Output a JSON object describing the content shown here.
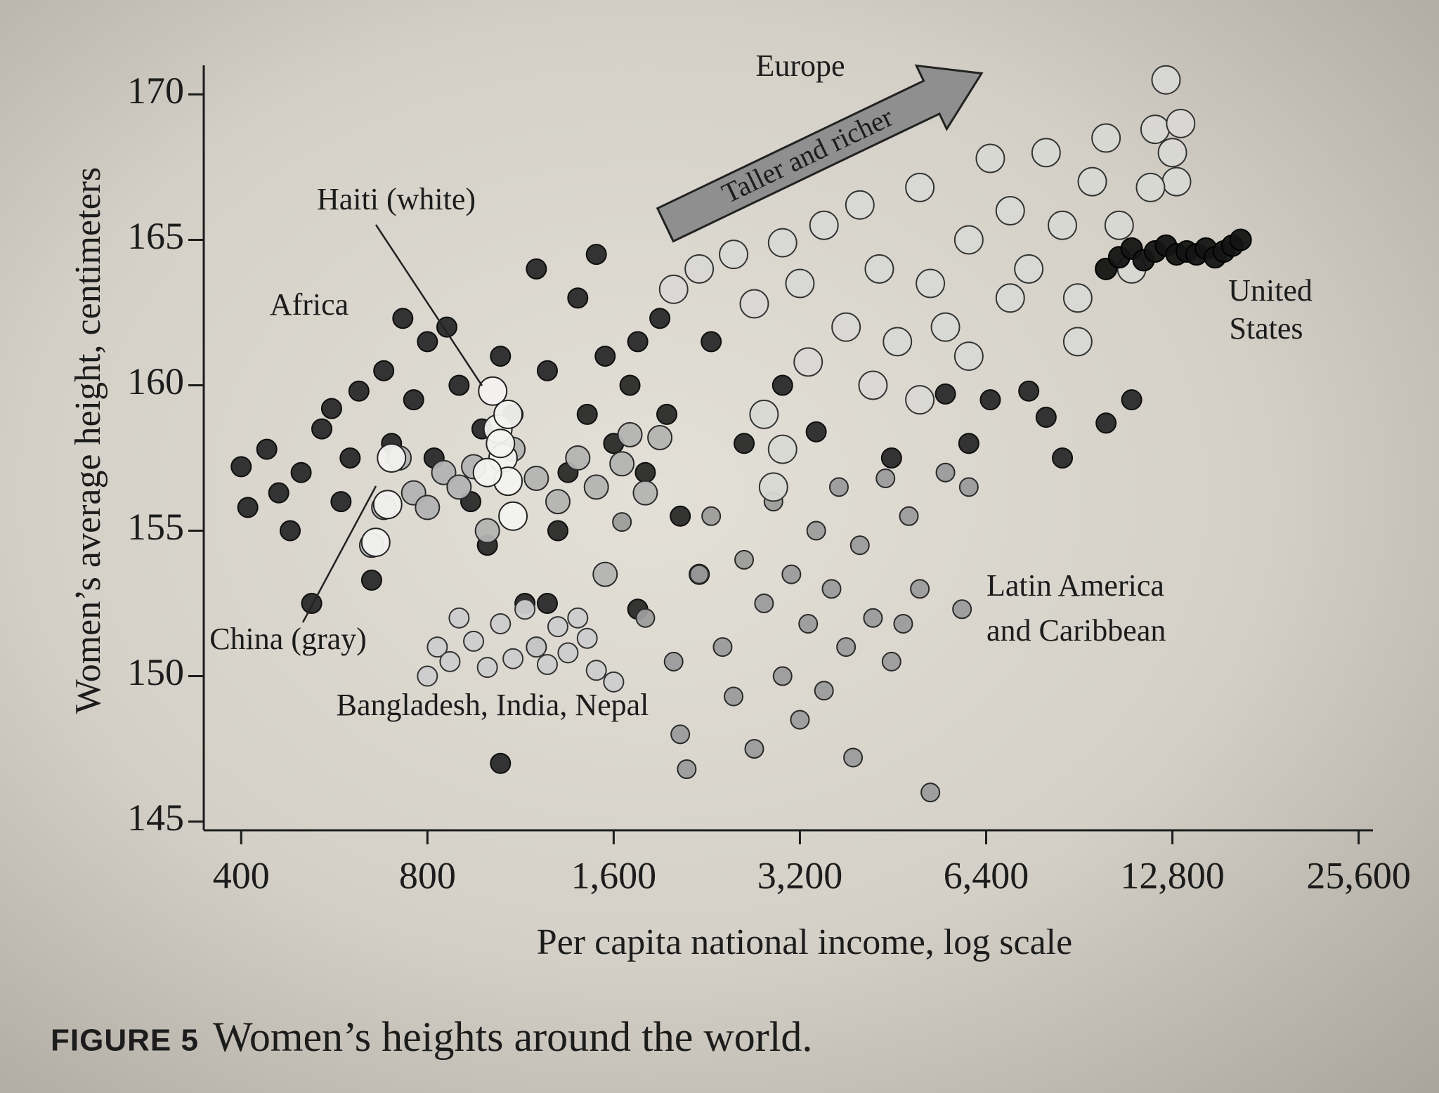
{
  "chart_data": {
    "type": "scatter",
    "xscale": "log",
    "xlim": [
      348,
      27000
    ],
    "ylim": [
      144.7,
      171
    ],
    "xticks": [
      400,
      800,
      {
        "value": 1600,
        "label": "1,600"
      },
      {
        "value": 3200,
        "label": "3,200"
      },
      {
        "value": 6400,
        "label": "6,400"
      },
      {
        "value": 12800,
        "label": "12,800"
      },
      {
        "value": 25600,
        "label": "25,600"
      }
    ],
    "yticks": [
      145,
      150,
      155,
      160,
      165,
      170
    ],
    "xlabel": "Per capita national income, log scale",
    "ylabel": "Women’s average height, centimeters",
    "figure_label": "FIGURE 5",
    "caption": "Women’s heights around the world.",
    "annotations": [
      {
        "text": "Europe"
      },
      {
        "text": "Taller and richer"
      },
      {
        "text": "Haiti (white)"
      },
      {
        "text": "Africa"
      },
      {
        "lines": [
          "United",
          "States"
        ]
      },
      {
        "lines": [
          "Latin America",
          "and Caribbean"
        ]
      },
      {
        "text": "China (gray)"
      },
      {
        "text": "Bangladesh, India, Nepal"
      }
    ],
    "series": [
      {
        "color": "#2a2a2a",
        "x": [
          400,
          410,
          440,
          460,
          480,
          500,
          520,
          540,
          560,
          580,
          600,
          620,
          650,
          680,
          700,
          730,
          760,
          800,
          820,
          860,
          900,
          940,
          980,
          1000,
          1050,
          1100,
          1150,
          1200,
          1250,
          1300,
          1350,
          1400,
          1450,
          1500,
          1550,
          1600,
          1700,
          1750,
          1800,
          1900,
          1950,
          2050,
          2200,
          1750,
          1050,
          2300,
          2600,
          3000,
          3400,
          4500,
          5500,
          6000,
          6500,
          7500,
          8000,
          8500,
          10000,
          11000,
          1200,
          1250
        ],
        "values": [
          157.2,
          155.8,
          157.8,
          156.3,
          155,
          157,
          152.5,
          158.5,
          159.2,
          156,
          157.5,
          159.8,
          153.3,
          160.5,
          158,
          162.3,
          159.5,
          161.5,
          157.5,
          162,
          160,
          156,
          158.5,
          154.5,
          161,
          159,
          152.5,
          164,
          160.5,
          155,
          157,
          163,
          159,
          164.5,
          161,
          158,
          160,
          161.5,
          157,
          162.3,
          159,
          155.5,
          153.5,
          152.3,
          147,
          161.5,
          158,
          160,
          158.4,
          157.5,
          159.7,
          158,
          159.5,
          159.8,
          158.9,
          157.5,
          158.7,
          159.5,
          151,
          152.5
        ]
      },
      {
        "color": "#9c9c9c",
        "x": [
          1650,
          1800,
          2000,
          2050,
          2100,
          2200,
          2300,
          2400,
          2500,
          2600,
          2700,
          2800,
          2900,
          3000,
          3100,
          3200,
          3300,
          3400,
          3500,
          3600,
          3700,
          3800,
          3900,
          4000,
          4200,
          4400,
          4500,
          4700,
          5000,
          5200,
          5850,
          6000,
          4800,
          5500
        ],
        "values": [
          155.3,
          152,
          150.5,
          148,
          146.8,
          153.5,
          155.5,
          151,
          149.3,
          154,
          147.5,
          152.5,
          156,
          150,
          153.5,
          148.5,
          151.8,
          155,
          149.5,
          153,
          156.5,
          151,
          147.2,
          154.5,
          152,
          156.8,
          150.5,
          151.8,
          153,
          146,
          152.3,
          156.5,
          155.5,
          157
        ]
      },
      {
        "color": "#cdcdcd",
        "x": [
          800,
          830,
          870,
          900,
          950,
          1000,
          1050,
          1100,
          1150,
          1200,
          1250,
          1300,
          1350,
          1400,
          1500,
          1450,
          1600
        ],
        "values": [
          150,
          151,
          150.5,
          152,
          151.2,
          150.3,
          151.8,
          150.6,
          152.3,
          151,
          150.4,
          151.7,
          150.8,
          152,
          150.2,
          151.3,
          149.8
        ]
      },
      {
        "color": "#b3b3b3",
        "x": [
          650,
          680,
          720,
          760,
          800,
          850,
          900,
          950,
          1000,
          1100,
          1200,
          1300,
          1400,
          1500,
          1650,
          1800,
          1550,
          1700,
          1900
        ],
        "values": [
          154.5,
          155.8,
          157.5,
          156.3,
          155.8,
          157,
          156.5,
          157.2,
          155,
          157.8,
          156.8,
          156,
          157.5,
          156.5,
          157.3,
          156.3,
          153.5,
          158.3,
          158.2
        ]
      },
      {
        "color": "#d8d8d4",
        "x": [
          2000,
          2200,
          2500,
          2700,
          3000,
          3200,
          3500,
          3800,
          4000,
          4300,
          4600,
          5000,
          5200,
          5500,
          6000,
          6500,
          7000,
          7500,
          8000,
          8500,
          9000,
          9500,
          10000,
          10500,
          11000,
          12000,
          13000,
          13200,
          12800,
          11800,
          12500,
          4200,
          5000,
          2800,
          3300,
          6000,
          7000,
          9000,
          2900,
          3000
        ],
        "values": [
          163.3,
          164,
          164.5,
          162.8,
          164.9,
          163.5,
          165.5,
          162,
          166.2,
          164,
          161.5,
          166.8,
          163.5,
          162,
          165,
          167.8,
          166,
          164,
          168,
          165.5,
          163,
          167,
          168.5,
          165.5,
          164,
          168.8,
          167,
          169,
          168,
          166.8,
          170.5,
          160,
          159.5,
          159,
          160.8,
          161,
          163,
          161.5,
          156.5,
          157.8
        ]
      },
      {
        "color": "#f2f2f0",
        "x": [
          1020,
          1040,
          1060,
          1080,
          1100,
          1050,
          1080,
          1000,
          700,
          690,
          660
        ],
        "values": [
          159.8,
          158.5,
          157.5,
          156.7,
          155.5,
          158,
          159,
          157,
          157.5,
          155.9,
          154.6
        ]
      },
      {
        "color": "#141414",
        "x": [
          10000,
          10500,
          11000,
          11500,
          12000,
          12500,
          13000,
          13500,
          14000,
          14500,
          15000,
          15500,
          16000,
          16500
        ],
        "values": [
          164,
          164.4,
          164.7,
          164.3,
          164.6,
          164.8,
          164.5,
          164.6,
          164.5,
          164.7,
          164.4,
          164.6,
          164.8,
          165
        ]
      }
    ]
  }
}
